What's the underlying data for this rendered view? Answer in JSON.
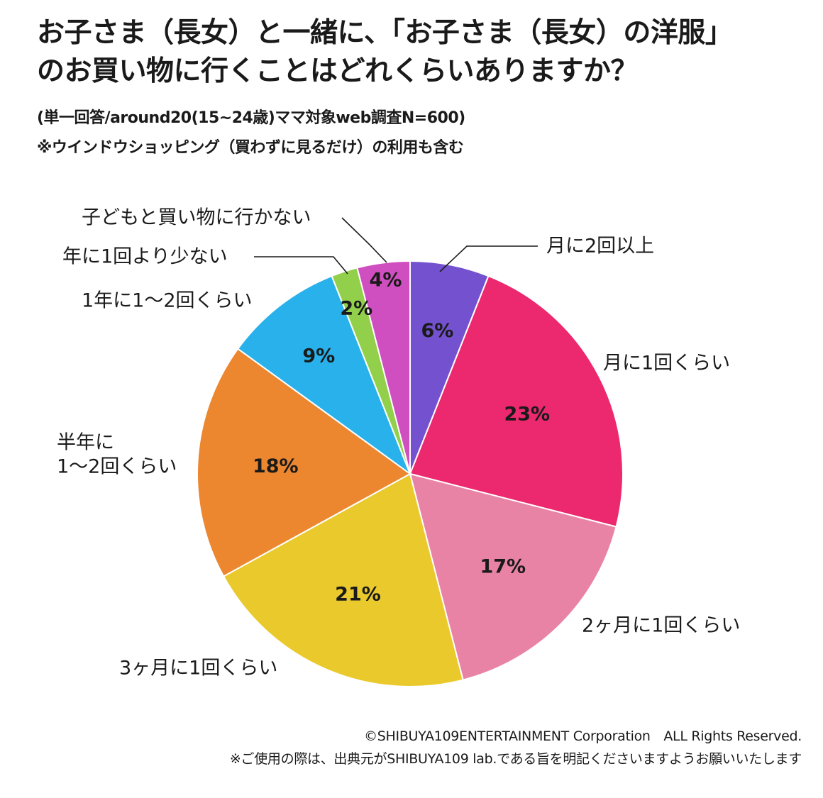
{
  "header": {
    "title_line1": "お子さま（長女）と一緒に、「お子さま（長女）の洋服」",
    "title_line2": "のお買い物に行くことはどれくらいありますか？",
    "subtitle_line1": "(単一回答/around20(15~24歳)ママ対象web調査N=600)",
    "subtitle_line2": "※ウインドウショッピング（買わずに見るだけ）の利用も含む"
  },
  "footer": {
    "copyright": "©SHIBUYA109ENTERTAINMENT Corporation　ALL Rights Reserved.",
    "note": "※ご使用の際は、出典元がSHIBUYA109 lab.である旨を明記くださいますようお願いいたします"
  },
  "chart_data": {
    "type": "pie",
    "title": "お子さま（長女）と一緒に、「お子さま（長女）の洋服」のお買い物に行くことはどれくらいありますか？",
    "start": "12 o'clock, clockwise",
    "slices": [
      {
        "label": "月に2回以上",
        "value": 6,
        "display": "6%",
        "color": "#7452cf"
      },
      {
        "label": "月に1回くらい",
        "value": 23,
        "display": "23%",
        "color": "#ec286e"
      },
      {
        "label": "2ヶ月に1回くらい",
        "value": 17,
        "display": "17%",
        "color": "#e983a6"
      },
      {
        "label": "3ヶ月に1回くらい",
        "value": 21,
        "display": "21%",
        "color": "#eac92c"
      },
      {
        "label": "半年に\n1～2回くらい",
        "value": 18,
        "display": "18%",
        "color": "#ec862f"
      },
      {
        "label": "1年に1～2回くらい",
        "value": 9,
        "display": "9%",
        "color": "#28b1ea"
      },
      {
        "label": "年に1回より少ない",
        "value": 2,
        "display": "2%",
        "color": "#92cf4a"
      },
      {
        "label": "子どもと買い物に行かない",
        "value": 4,
        "display": "4%",
        "color": "#d04fc0"
      }
    ]
  }
}
